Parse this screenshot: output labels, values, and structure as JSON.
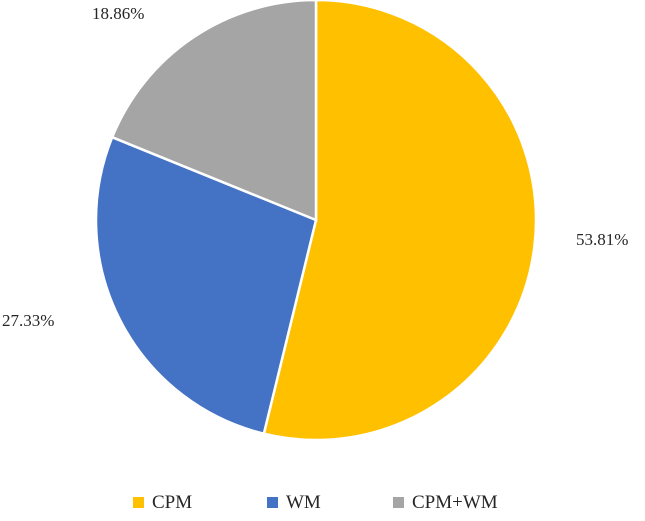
{
  "chart_data": {
    "type": "pie",
    "categories": [
      "CPM",
      "WM",
      "CPM+WM"
    ],
    "values": [
      53.81,
      27.33,
      18.86
    ],
    "data_labels": [
      "53.81%",
      "27.33%",
      "18.86%"
    ],
    "colors": [
      "#FFC000",
      "#4472C4",
      "#A5A5A5"
    ],
    "start_angle": "12 o'clock",
    "direction": "clockwise",
    "legend": {
      "position": "bottom",
      "entries": [
        "CPM",
        "WM",
        "CPM+WM"
      ]
    },
    "title": ""
  }
}
